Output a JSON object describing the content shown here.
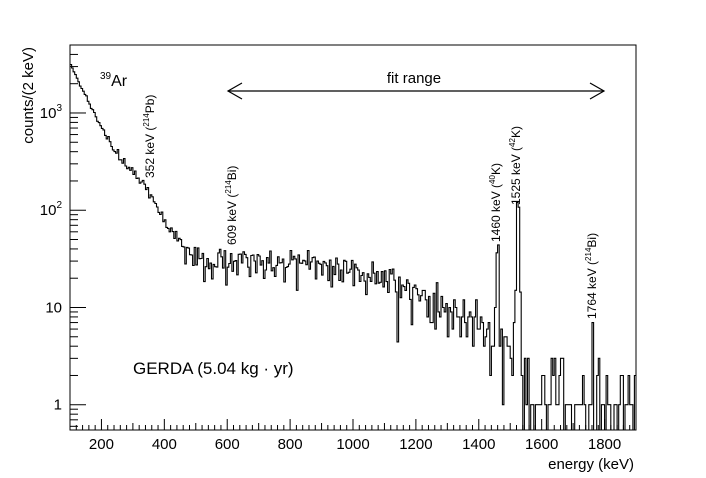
{
  "chart_data": {
    "type": "histogram",
    "xlabel": "energy (keV)",
    "ylabel": "counts/(2 keV)",
    "xlim": [
      100,
      1900
    ],
    "ylim": [
      0.55,
      5000
    ],
    "yscale": "log",
    "bin_width_keV": 2,
    "x_ticks": [
      {
        "value": 200,
        "label": "200"
      },
      {
        "value": 400,
        "label": "400"
      },
      {
        "value": 600,
        "label": "600"
      },
      {
        "value": 800,
        "label": "800"
      },
      {
        "value": 1000,
        "label": "1000"
      },
      {
        "value": 1200,
        "label": "1200"
      },
      {
        "value": 1400,
        "label": "1400"
      },
      {
        "value": 1600,
        "label": "1600"
      },
      {
        "value": 1800,
        "label": "1800"
      }
    ],
    "y_ticks": [
      {
        "value": 1,
        "label": "1"
      },
      {
        "value": 10,
        "label": "10"
      },
      {
        "value": 100,
        "label": "10",
        "sup": "2"
      },
      {
        "value": 1000,
        "label": "10",
        "sup": "3"
      }
    ],
    "spectrum_shape": [
      [
        100,
        3200
      ],
      [
        150,
        1500
      ],
      [
        200,
        700
      ],
      [
        250,
        380
      ],
      [
        300,
        240
      ],
      [
        350,
        160
      ],
      [
        400,
        80
      ],
      [
        450,
        45
      ],
      [
        500,
        32
      ],
      [
        550,
        29
      ],
      [
        600,
        28
      ],
      [
        700,
        30
      ],
      [
        800,
        29
      ],
      [
        900,
        27
      ],
      [
        1000,
        24
      ],
      [
        1100,
        19
      ],
      [
        1200,
        13
      ],
      [
        1300,
        9
      ],
      [
        1350,
        7.5
      ],
      [
        1400,
        5.5
      ],
      [
        1450,
        4.5
      ],
      [
        1500,
        3.5
      ],
      [
        1550,
        2.5
      ],
      [
        1600,
        1.6
      ],
      [
        1700,
        1.2
      ],
      [
        1800,
        1.0
      ],
      [
        1900,
        0.9
      ]
    ],
    "peaks": [
      {
        "energy": 1460,
        "counts": 35
      },
      {
        "energy": 1525,
        "counts": 105
      },
      {
        "energy": 1764,
        "counts": 5
      }
    ],
    "annotations": {
      "ar39": {
        "sup": "39",
        "text": "Ar"
      },
      "fit_range": {
        "label": "fit range",
        "from": 600,
        "to": 1800
      },
      "line_labels": [
        {
          "id": "pb214-352",
          "prefix": "352 keV (",
          "sup": "214",
          "suffix": "Pb)",
          "energy": 352
        },
        {
          "id": "bi214-609",
          "prefix": "609 keV (",
          "sup": "214",
          "suffix": "Bi)",
          "energy": 609
        },
        {
          "id": "k40-1460",
          "prefix": "1460 keV (",
          "sup": "40",
          "suffix": "K)",
          "energy": 1460
        },
        {
          "id": "k42-1525",
          "prefix": "1525 keV (",
          "sup": "42",
          "suffix": "K)",
          "energy": 1525
        },
        {
          "id": "bi214-1764",
          "prefix": "1764 keV (",
          "sup": "214",
          "suffix": "Bi)",
          "energy": 1764
        }
      ],
      "exposure": "GERDA (5.04 kg · yr)"
    }
  }
}
